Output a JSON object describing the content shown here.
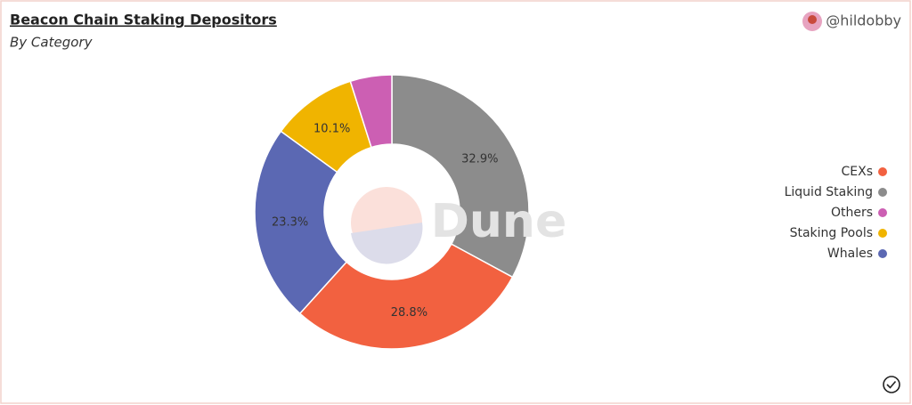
{
  "chart_data": {
    "type": "pie",
    "title": "Beacon Chain Staking Depositors",
    "subtitle": "By Category",
    "author": "@hildobby",
    "watermark": "Dune",
    "categories": [
      "Liquid Staking",
      "CEXs",
      "Whales",
      "Staking Pools",
      "Others"
    ],
    "values": [
      32.9,
      28.8,
      23.3,
      10.1,
      4.9
    ],
    "value_labels": [
      "32.9%",
      "28.8%",
      "23.3%",
      "10.1%",
      null
    ],
    "colors": [
      "#8c8c8c",
      "#f26140",
      "#5b68b3",
      "#f0b400",
      "#cc5fb3"
    ],
    "donut": true,
    "legend": "right"
  }
}
